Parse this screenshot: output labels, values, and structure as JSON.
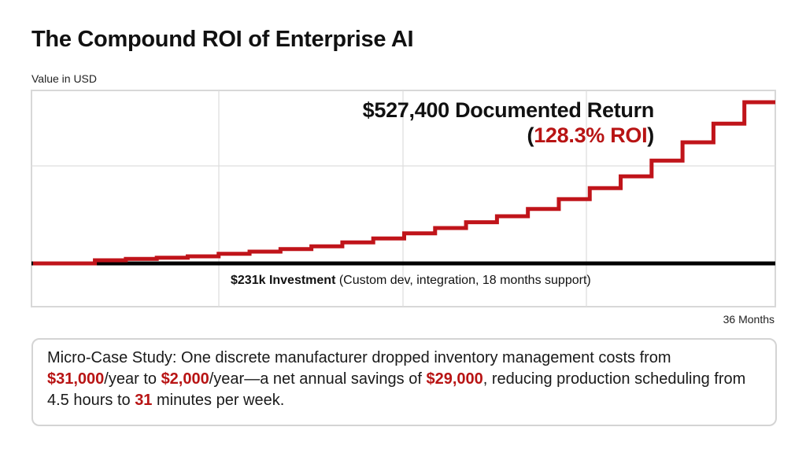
{
  "chart_data": {
    "type": "line",
    "step": true,
    "title": "The Compound ROI of Enterprise AI",
    "ylabel": "Value in USD",
    "xlabel": "36 Months",
    "xlim": [
      0,
      36
    ],
    "ylim": [
      -120000,
      590000
    ],
    "grid": true,
    "series": [
      {
        "color": "#c0141a",
        "x": [
          0,
          3,
          4.5,
          6,
          7.5,
          9,
          10.5,
          12,
          13.5,
          15,
          16.5,
          18,
          19.5,
          21,
          22.5,
          24,
          25.5,
          27,
          28.5,
          30,
          31.5,
          33,
          34.5,
          36
        ],
        "values": [
          0,
          10300,
          14700,
          18800,
          23200,
          31600,
          38600,
          47100,
          55800,
          68700,
          81600,
          98500,
          115800,
          134600,
          154400,
          178300,
          210200,
          246200,
          284800,
          336300,
          396200,
          457200,
          527400,
          527400
        ]
      }
    ],
    "baseline": {
      "value": 0,
      "color": "#000000"
    },
    "annotations": {
      "return_main": "$527,400 Documented Return",
      "roi_open": "(",
      "roi_value": "128.3% ROI",
      "roi_close": ")",
      "investment_bold": "$231k Investment",
      "investment_detail": " (Custom dev, integration, 18 months support)"
    }
  },
  "case_study": {
    "t1": "Micro-Case Study: One discrete manufacturer dropped inventory management costs from ",
    "v1": "$31,000",
    "t2": "/year to ",
    "v2": "$2,000",
    "t3": "/year—a net annual savings of ",
    "v3": "$29,000",
    "t4": ", reducing production scheduling from 4.5 hours to ",
    "v4": "31",
    "t5": " minutes per week."
  },
  "colors": {
    "accent": "#b81414",
    "grid": "#dddddd"
  }
}
